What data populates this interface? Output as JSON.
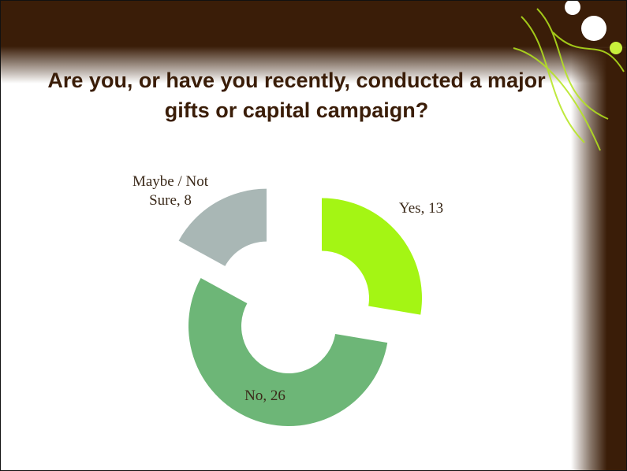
{
  "chart_data": {
    "type": "donut",
    "title": "Are you, or have you recently, conducted a major gifts or capital campaign?",
    "categories": [
      "Yes",
      "No",
      "Maybe / Not Sure"
    ],
    "values": [
      13,
      26,
      8
    ],
    "value_labels": [
      "Yes, 13",
      "No, 26",
      "Maybe / Not Sure, 8"
    ],
    "colors": [
      "#a4f514",
      "#6db677",
      "#a9b7b5"
    ]
  }
}
